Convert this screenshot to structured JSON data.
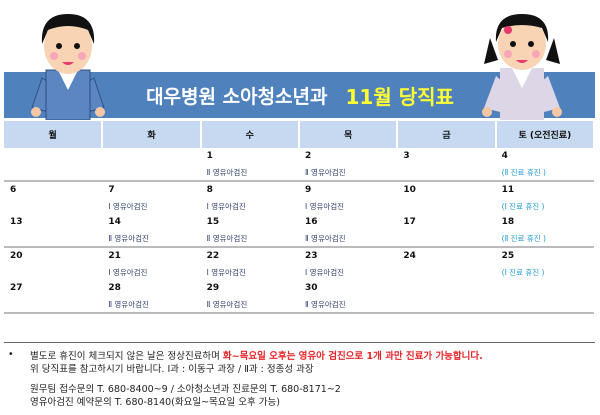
{
  "header": {
    "title_prefix": "대우병원 소아청소년과",
    "title_highlight": "11월 당직표"
  },
  "colors": {
    "band": "#4f81bd",
    "header_row": "#c6d9f0",
    "highlight": "#ffff33",
    "saturday_note": "#1b9ad6",
    "warning": "#e8262a"
  },
  "days": [
    "월",
    "화",
    "수",
    "목",
    "금",
    "토 (오전진료)"
  ],
  "weeks": [
    [
      {
        "n": "",
        "t": ""
      },
      {
        "n": "",
        "t": ""
      },
      {
        "n": "1",
        "t": "Ⅱ 영유아검진"
      },
      {
        "n": "2",
        "t": "Ⅱ 영유아검진"
      },
      {
        "n": "3",
        "t": ""
      },
      {
        "n": "4",
        "t": "(Ⅱ 진료 휴진 )"
      }
    ],
    [
      {
        "n": "6",
        "t": ""
      },
      {
        "n": "7",
        "t": "Ⅰ 영유아검진"
      },
      {
        "n": "8",
        "t": "Ⅰ 영유아검진"
      },
      {
        "n": "9",
        "t": "Ⅰ 영유아검진"
      },
      {
        "n": "10",
        "t": ""
      },
      {
        "n": "11",
        "t": "(Ⅰ 진료 휴진 )"
      }
    ],
    [
      {
        "n": "13",
        "t": ""
      },
      {
        "n": "14",
        "t": "Ⅱ 영유아검진"
      },
      {
        "n": "15",
        "t": "Ⅱ 영유아검진"
      },
      {
        "n": "16",
        "t": "Ⅱ 영유아검진"
      },
      {
        "n": "17",
        "t": ""
      },
      {
        "n": "18",
        "t": "(Ⅱ 진료 휴진 )"
      }
    ],
    [
      {
        "n": "20",
        "t": ""
      },
      {
        "n": "21",
        "t": "Ⅰ 영유아검진"
      },
      {
        "n": "22",
        "t": "Ⅰ 영유아검진"
      },
      {
        "n": "23",
        "t": "Ⅰ 영유아검진"
      },
      {
        "n": "24",
        "t": ""
      },
      {
        "n": "25",
        "t": "(Ⅰ 진료 휴진 )"
      }
    ],
    [
      {
        "n": "27",
        "t": ""
      },
      {
        "n": "28",
        "t": "Ⅱ 영유아검진"
      },
      {
        "n": "29",
        "t": "Ⅱ 영유아검진"
      },
      {
        "n": "30",
        "t": "Ⅱ 영유아검진"
      },
      {
        "n": "",
        "t": ""
      },
      {
        "n": "",
        "t": ""
      }
    ]
  ],
  "footer": {
    "bullet": "•",
    "line1_normal": "별도로 휴진이 체크되지 않은 날은 정상진료하며 ",
    "line1_red": "화~목요일 오후는 영유아 검진으로 1개 과만 진료가 가능합니다.",
    "line2": "위 당직표를 참고하시기 바랍니다.   Ⅰ과 : 이동구 과장  /  Ⅱ과 : 정종성 과장",
    "line3": "원무팀 접수문의 T. 680-8400~9     /    소아청소년과 진료문의 T. 680-8171~2",
    "line4": "영유아검진 예약문의 T. 680-8140(화요일~목요일  오후 가능)"
  }
}
